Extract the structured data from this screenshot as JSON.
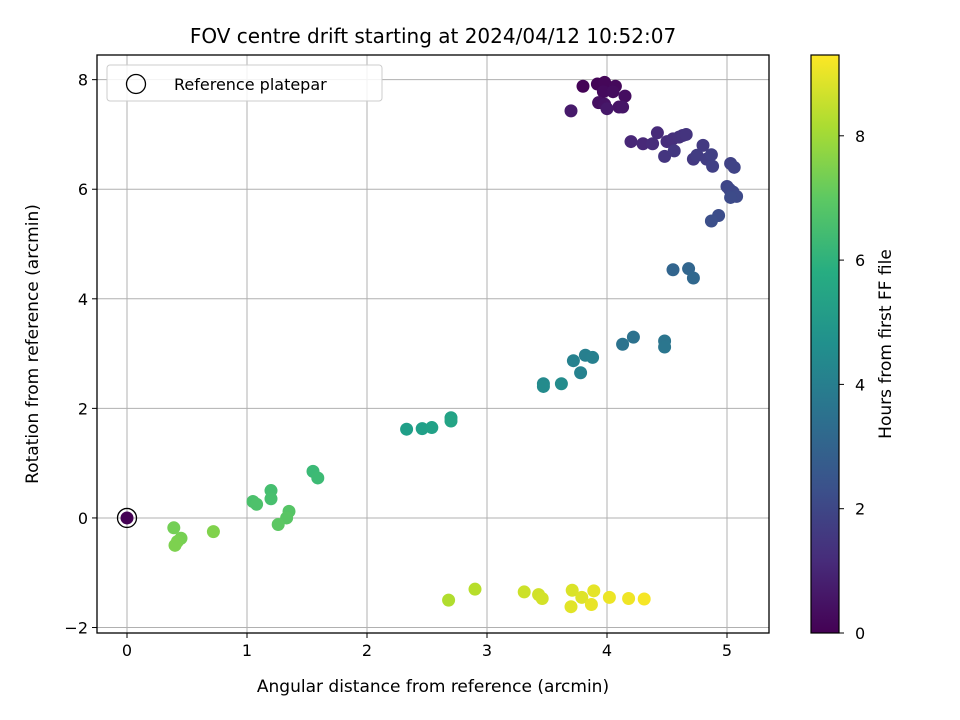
{
  "chart_data": {
    "type": "scatter",
    "title": "FOV centre drift starting at 2024/04/12 10:52:07",
    "xlabel": "Angular distance from reference (arcmin)",
    "ylabel": "Rotation from reference (arcmin)",
    "xlim": [
      -0.25,
      5.35
    ],
    "ylim": [
      -2.1,
      8.45
    ],
    "xticks": [
      0,
      1,
      2,
      3,
      4,
      5
    ],
    "yticks": [
      -2,
      0,
      2,
      4,
      6,
      8
    ],
    "grid": true,
    "legend": {
      "position": "top-left",
      "entries": [
        "Reference platepar"
      ]
    },
    "reference_point": {
      "x": 0,
      "y": 0,
      "hours": 0
    },
    "colorbar": {
      "label": "Hours from first FF file",
      "range": [
        0,
        9.3
      ],
      "ticks": [
        0,
        2,
        4,
        6,
        8
      ],
      "colormap": "viridis"
    },
    "points": [
      {
        "x": 3.8,
        "y": 7.88,
        "c": 0.05
      },
      {
        "x": 3.92,
        "y": 7.92,
        "c": 0.1
      },
      {
        "x": 3.98,
        "y": 7.95,
        "c": 0.15
      },
      {
        "x": 4.07,
        "y": 7.88,
        "c": 0.2
      },
      {
        "x": 3.97,
        "y": 7.78,
        "c": 0.25
      },
      {
        "x": 4.05,
        "y": 7.78,
        "c": 0.3
      },
      {
        "x": 4.15,
        "y": 7.7,
        "c": 0.35
      },
      {
        "x": 3.93,
        "y": 7.58,
        "c": 0.4
      },
      {
        "x": 3.98,
        "y": 7.55,
        "c": 0.45
      },
      {
        "x": 4.1,
        "y": 7.5,
        "c": 0.5
      },
      {
        "x": 4.13,
        "y": 7.5,
        "c": 0.55
      },
      {
        "x": 4.0,
        "y": 7.47,
        "c": 0.6
      },
      {
        "x": 3.7,
        "y": 7.43,
        "c": 0.65
      },
      {
        "x": 4.2,
        "y": 6.87,
        "c": 1.0
      },
      {
        "x": 4.3,
        "y": 6.83,
        "c": 1.05
      },
      {
        "x": 4.42,
        "y": 7.03,
        "c": 1.1
      },
      {
        "x": 4.38,
        "y": 6.83,
        "c": 1.15
      },
      {
        "x": 4.5,
        "y": 6.87,
        "c": 1.2
      },
      {
        "x": 4.55,
        "y": 6.92,
        "c": 1.25
      },
      {
        "x": 4.6,
        "y": 6.95,
        "c": 1.3
      },
      {
        "x": 4.63,
        "y": 6.98,
        "c": 1.35
      },
      {
        "x": 4.66,
        "y": 7.0,
        "c": 1.4
      },
      {
        "x": 4.48,
        "y": 6.6,
        "c": 1.45
      },
      {
        "x": 4.56,
        "y": 6.7,
        "c": 1.5
      },
      {
        "x": 4.72,
        "y": 6.55,
        "c": 1.55
      },
      {
        "x": 4.8,
        "y": 6.8,
        "c": 1.6
      },
      {
        "x": 4.75,
        "y": 6.62,
        "c": 1.65
      },
      {
        "x": 4.83,
        "y": 6.55,
        "c": 1.7
      },
      {
        "x": 4.87,
        "y": 6.63,
        "c": 1.75
      },
      {
        "x": 4.88,
        "y": 6.42,
        "c": 1.8
      },
      {
        "x": 5.03,
        "y": 6.47,
        "c": 1.85
      },
      {
        "x": 5.06,
        "y": 6.4,
        "c": 1.9
      },
      {
        "x": 5.0,
        "y": 6.05,
        "c": 1.95
      },
      {
        "x": 5.02,
        "y": 6.0,
        "c": 2.0
      },
      {
        "x": 5.05,
        "y": 5.95,
        "c": 2.05
      },
      {
        "x": 5.08,
        "y": 5.87,
        "c": 2.1
      },
      {
        "x": 5.03,
        "y": 5.85,
        "c": 2.15
      },
      {
        "x": 4.93,
        "y": 5.52,
        "c": 2.2
      },
      {
        "x": 4.87,
        "y": 5.42,
        "c": 2.25
      },
      {
        "x": 4.55,
        "y": 4.53,
        "c": 3.0
      },
      {
        "x": 4.68,
        "y": 4.55,
        "c": 3.05
      },
      {
        "x": 4.72,
        "y": 4.38,
        "c": 3.1
      },
      {
        "x": 4.22,
        "y": 3.3,
        "c": 3.5
      },
      {
        "x": 4.13,
        "y": 3.17,
        "c": 3.55
      },
      {
        "x": 4.48,
        "y": 3.23,
        "c": 3.6
      },
      {
        "x": 4.48,
        "y": 3.12,
        "c": 3.65
      },
      {
        "x": 3.82,
        "y": 2.97,
        "c": 4.0
      },
      {
        "x": 3.88,
        "y": 2.93,
        "c": 4.05
      },
      {
        "x": 3.72,
        "y": 2.87,
        "c": 4.1
      },
      {
        "x": 3.78,
        "y": 2.65,
        "c": 4.15
      },
      {
        "x": 3.47,
        "y": 2.45,
        "c": 4.4
      },
      {
        "x": 3.47,
        "y": 2.4,
        "c": 4.45
      },
      {
        "x": 3.62,
        "y": 2.45,
        "c": 4.5
      },
      {
        "x": 2.33,
        "y": 1.62,
        "c": 5.2
      },
      {
        "x": 2.46,
        "y": 1.63,
        "c": 5.25
      },
      {
        "x": 2.54,
        "y": 1.65,
        "c": 5.3
      },
      {
        "x": 2.7,
        "y": 1.83,
        "c": 5.35
      },
      {
        "x": 2.7,
        "y": 1.77,
        "c": 5.4
      },
      {
        "x": 1.55,
        "y": 0.85,
        "c": 6.3
      },
      {
        "x": 1.59,
        "y": 0.73,
        "c": 6.35
      },
      {
        "x": 1.2,
        "y": 0.5,
        "c": 6.5
      },
      {
        "x": 1.2,
        "y": 0.35,
        "c": 6.55
      },
      {
        "x": 1.05,
        "y": 0.3,
        "c": 6.6
      },
      {
        "x": 1.08,
        "y": 0.25,
        "c": 6.65
      },
      {
        "x": 1.35,
        "y": 0.12,
        "c": 6.8
      },
      {
        "x": 1.33,
        "y": 0.0,
        "c": 6.85
      },
      {
        "x": 1.26,
        "y": -0.12,
        "c": 6.9
      },
      {
        "x": 0.39,
        "y": -0.18,
        "c": 7.3
      },
      {
        "x": 0.45,
        "y": -0.37,
        "c": 7.35
      },
      {
        "x": 0.42,
        "y": -0.43,
        "c": 7.4
      },
      {
        "x": 0.4,
        "y": -0.5,
        "c": 7.45
      },
      {
        "x": 0.72,
        "y": -0.25,
        "c": 7.5
      },
      {
        "x": 2.68,
        "y": -1.5,
        "c": 8.2
      },
      {
        "x": 2.9,
        "y": -1.3,
        "c": 8.3
      },
      {
        "x": 3.31,
        "y": -1.35,
        "c": 8.6
      },
      {
        "x": 3.43,
        "y": -1.4,
        "c": 8.65
      },
      {
        "x": 3.46,
        "y": -1.47,
        "c": 8.7
      },
      {
        "x": 3.71,
        "y": -1.32,
        "c": 8.8
      },
      {
        "x": 3.79,
        "y": -1.45,
        "c": 8.85
      },
      {
        "x": 3.7,
        "y": -1.62,
        "c": 8.9
      },
      {
        "x": 3.89,
        "y": -1.33,
        "c": 8.95
      },
      {
        "x": 3.87,
        "y": -1.58,
        "c": 9.0
      },
      {
        "x": 4.02,
        "y": -1.45,
        "c": 9.05
      },
      {
        "x": 4.18,
        "y": -1.47,
        "c": 9.1
      },
      {
        "x": 4.31,
        "y": -1.48,
        "c": 9.2
      }
    ]
  }
}
